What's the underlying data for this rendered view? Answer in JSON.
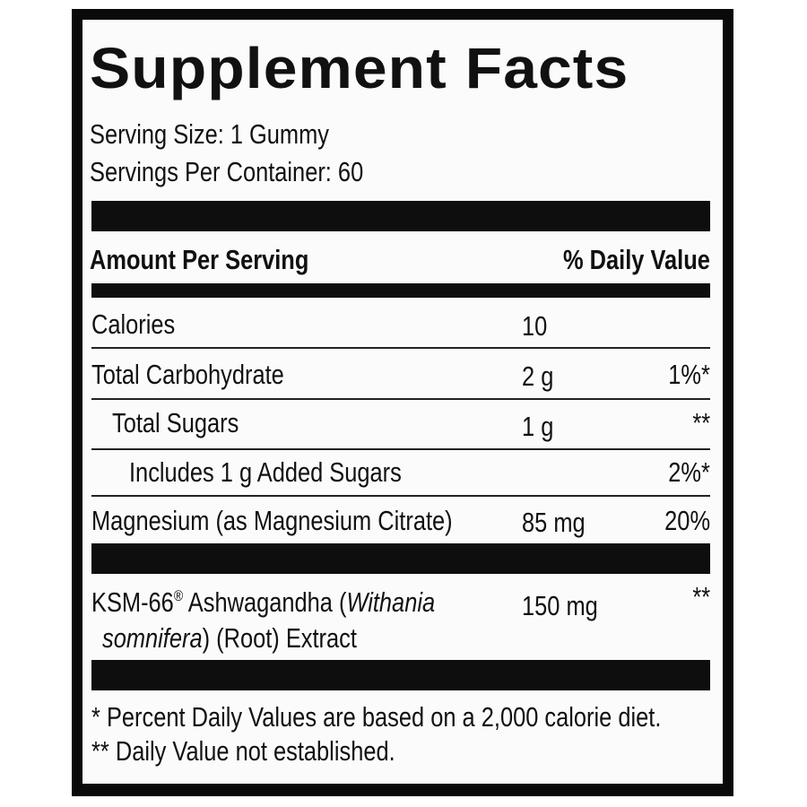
{
  "title": "Supplement Facts",
  "serving_size": "Serving Size: 1 Gummy",
  "servings_per_container": "Servings Per Container: 60",
  "header": {
    "amount_per_serving": "Amount Per Serving",
    "daily_value": "% Daily Value"
  },
  "rows": [
    {
      "name": "Calories",
      "amount": "10",
      "dv": ""
    },
    {
      "name": "Total Carbohydrate",
      "amount": "2 g",
      "dv": "1%*"
    },
    {
      "name": "Total Sugars",
      "amount": "1 g",
      "dv": "**"
    },
    {
      "name": "Includes 1 g Added Sugars",
      "amount": "",
      "dv": "2%*"
    },
    {
      "name": "Magnesium (as Magnesium Citrate)",
      "amount": "85 mg",
      "dv": "20%"
    }
  ],
  "ksm": {
    "name_prefix": "KSM-66",
    "registered": "®",
    "name_mid": " Ashwagandha (",
    "name_italic": "Withania",
    "line2_italic": "somnifera",
    "line2_rest": ") (Root) Extract",
    "amount": "150 mg",
    "dv": "**"
  },
  "footnotes": [
    "* Percent Daily Values are based on a 2,000 calorie diet.",
    "** Daily Value not established."
  ]
}
